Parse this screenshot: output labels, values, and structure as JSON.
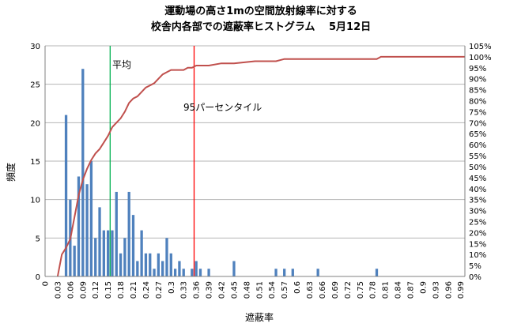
{
  "chart_data": {
    "type": "bar",
    "title": "運動場の高さ1mの空間放射線率に対する",
    "subtitle": "校舎内各部での遮蔽率ヒストグラム　 5月12日",
    "xlabel": "遮蔽率",
    "ylabel": "頻度",
    "ylim": [
      0,
      30
    ],
    "y_ticks": [
      0,
      5,
      10,
      15,
      20,
      25,
      30
    ],
    "y2lim": [
      0,
      105
    ],
    "y2_ticks": [
      "0%",
      "5%",
      "10%",
      "15%",
      "20%",
      "25%",
      "30%",
      "35%",
      "40%",
      "45%",
      "50%",
      "55%",
      "60%",
      "65%",
      "70%",
      "75%",
      "80%",
      "85%",
      "90%",
      "95%",
      "100%",
      "105%"
    ],
    "x_ticks": [
      "0",
      "0.03",
      "0.06",
      "0.09",
      "0.12",
      "0.15",
      "0.18",
      "0.21",
      "0.24",
      "0.27",
      "0.3",
      "0.33",
      "0.36",
      "0.39",
      "0.42",
      "0.45",
      "0.48",
      "0.51",
      "0.54",
      "0.57",
      "0.6",
      "0.63",
      "0.66",
      "0.69",
      "0.72",
      "0.75",
      "0.78",
      "0.81",
      "0.84",
      "0.87",
      "0.9",
      "0.93",
      "0.96",
      "0.99"
    ],
    "grid": true,
    "series": [
      {
        "type": "bar",
        "color": "#4f81bd",
        "x": [
          0.05,
          0.06,
          0.07,
          0.08,
          0.09,
          0.1,
          0.11,
          0.12,
          0.13,
          0.14,
          0.15,
          0.16,
          0.17,
          0.18,
          0.19,
          0.2,
          0.21,
          0.22,
          0.23,
          0.24,
          0.25,
          0.26,
          0.27,
          0.28,
          0.29,
          0.3,
          0.31,
          0.32,
          0.33,
          0.35,
          0.36,
          0.37,
          0.39,
          0.45,
          0.55,
          0.57,
          0.59,
          0.65,
          0.79
        ],
        "values": [
          21,
          10,
          4,
          13,
          27,
          12,
          15,
          5,
          9,
          6,
          6,
          6,
          11,
          3,
          5,
          11,
          8,
          2,
          6,
          3,
          3,
          1,
          3,
          2,
          5,
          3,
          1,
          2,
          1,
          1,
          2,
          1,
          1,
          2,
          1,
          1,
          1,
          1,
          1
        ]
      },
      {
        "type": "line",
        "color": "#c0504d",
        "axis": "right",
        "x": [
          0.03,
          0.04,
          0.05,
          0.06,
          0.07,
          0.08,
          0.09,
          0.1,
          0.11,
          0.12,
          0.13,
          0.14,
          0.15,
          0.16,
          0.17,
          0.18,
          0.19,
          0.2,
          0.21,
          0.22,
          0.23,
          0.24,
          0.25,
          0.26,
          0.27,
          0.28,
          0.29,
          0.3,
          0.31,
          0.32,
          0.33,
          0.34,
          0.35,
          0.36,
          0.37,
          0.38,
          0.39,
          0.42,
          0.45,
          0.5,
          0.55,
          0.57,
          0.59,
          0.65,
          0.7,
          0.79,
          0.8,
          1.0
        ],
        "values": [
          0,
          10,
          13,
          17,
          27,
          37,
          44,
          49,
          53,
          56,
          58,
          61,
          64,
          68,
          70,
          72,
          75,
          79,
          81,
          82,
          84,
          86,
          87,
          88,
          90,
          92,
          93,
          94,
          94,
          94,
          94,
          95,
          95,
          96,
          96,
          96,
          96,
          97,
          97,
          98,
          98,
          99,
          99,
          99,
          99,
          99,
          100,
          100
        ]
      }
    ],
    "annotations": [
      {
        "text": "平均",
        "x": 0.155,
        "color": "#00b050"
      },
      {
        "text": "95パーセンタイル",
        "x": 0.355,
        "color": "#ff0000"
      }
    ]
  }
}
